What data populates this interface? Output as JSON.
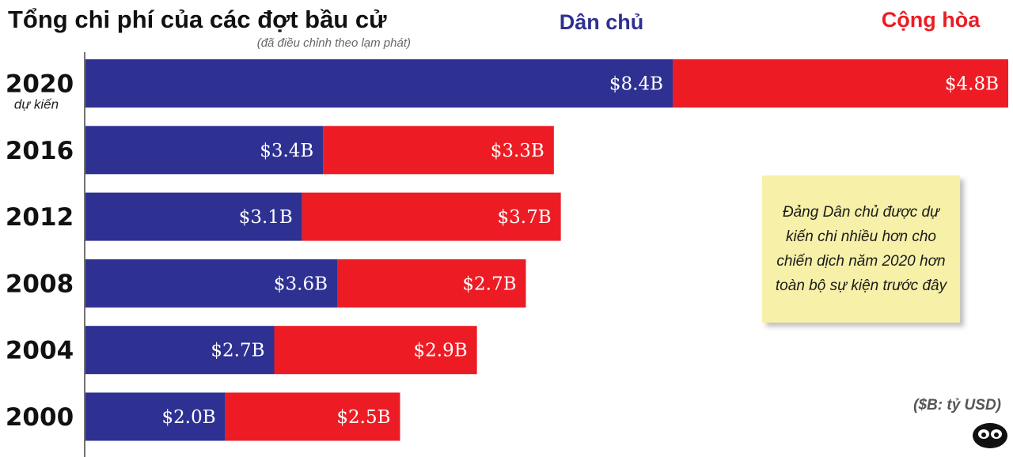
{
  "chart_data": {
    "type": "bar",
    "orientation": "horizontal",
    "stacked": true,
    "title": "Tổng chi phí của các đợt bầu cử",
    "subtitle": "(đã điều chỉnh theo lạm phát)",
    "categories": [
      "2020",
      "2016",
      "2012",
      "2008",
      "2004",
      "2000"
    ],
    "category_notes": [
      "dự kiến",
      "",
      "",
      "",
      "",
      ""
    ],
    "series": [
      {
        "name": "Dân chủ",
        "color": "#2e3192",
        "values": [
          8.4,
          3.4,
          3.1,
          3.6,
          2.7,
          2.0
        ],
        "labels": [
          "$8.4B",
          "$3.4B",
          "$3.1B",
          "$3.6B",
          "$2.7B",
          "$2.0B"
        ]
      },
      {
        "name": "Cộng hòa",
        "color": "#ed1c24",
        "values": [
          4.8,
          3.3,
          3.7,
          2.7,
          2.9,
          2.5
        ],
        "labels": [
          "$4.8B",
          "$3.3B",
          "$3.7B",
          "$2.7B",
          "$2.9B",
          "$2.5B"
        ]
      }
    ],
    "xlim": [
      0,
      13.2
    ],
    "grid": false,
    "legend_position": "top",
    "annotation": "Đảng Dân chủ được dự kiến chi nhiều hơn cho chiến dịch năm 2020 hơn toàn bộ sự kiện trước đây",
    "unit_note": "($B: tỷ USD)"
  }
}
